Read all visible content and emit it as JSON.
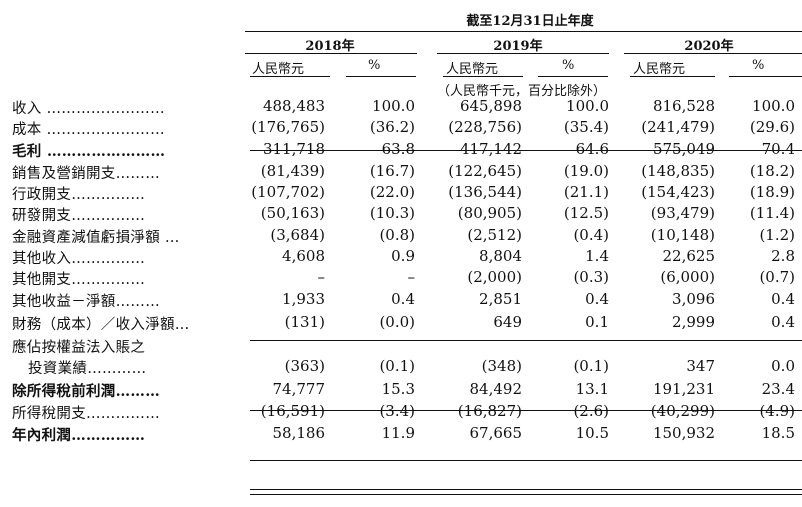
{
  "header": {
    "period_title": "截至12月31日止年度",
    "years": [
      "2018年",
      "2019年",
      "2020年"
    ],
    "col_rmb": "人民幣元",
    "col_pct": "%",
    "unit_note": "（人民幣千元，百分比除外）"
  },
  "rows": [
    {
      "label": "收入 ……………………",
      "values": [
        "488,483",
        "100.0",
        "645,898",
        "100.0",
        "816,528",
        "100.0"
      ]
    },
    {
      "label": "成本 ……………………",
      "values": [
        "(176,765)",
        "(36.2)",
        "(228,756)",
        "(35.4)",
        "(241,479)",
        "(29.6)"
      ]
    },
    {
      "label": "毛利 ……………………",
      "values": [
        "311,718",
        "63.8",
        "417,142",
        "64.6",
        "575,049",
        "70.4"
      ]
    },
    {
      "label": "銷售及營銷開支………",
      "values": [
        "(81,439)",
        "(16.7)",
        "(122,645)",
        "(19.0)",
        "(148,835)",
        "(18.2)"
      ]
    },
    {
      "label": "行政開支……………",
      "values": [
        "(107,702)",
        "(22.0)",
        "(136,544)",
        "(21.1)",
        "(154,423)",
        "(18.9)"
      ]
    },
    {
      "label": "研發開支……………",
      "values": [
        "(50,163)",
        "(10.3)",
        "(80,905)",
        "(12.5)",
        "(93,479)",
        "(11.4)"
      ]
    },
    {
      "label": "金融資產減值虧損淨額 …",
      "values": [
        "(3,684)",
        "(0.8)",
        "(2,512)",
        "(0.4)",
        "(10,148)",
        "(1.2)"
      ]
    },
    {
      "label": "其他收入……………",
      "values": [
        "4,608",
        "0.9",
        "8,804",
        "1.4",
        "22,625",
        "2.8"
      ]
    },
    {
      "label": "其他開支……………",
      "values": [
        "–",
        "–",
        "(2,000)",
        "(0.3)",
        "(6,000)",
        "(0.7)"
      ]
    },
    {
      "label": "其他收益－淨額………",
      "values": [
        "1,933",
        "0.4",
        "2,851",
        "0.4",
        "3,096",
        "0.4"
      ]
    },
    {
      "label": "財務（成本）／收入淨額…",
      "values": [
        "(131)",
        "(0.0)",
        "649",
        "0.1",
        "2,999",
        "0.4"
      ]
    },
    {
      "label": "應佔按權益法入賬之",
      "values": [
        "",
        "",
        "",
        "",
        "",
        ""
      ]
    },
    {
      "label": "投資業績…………",
      "values": [
        "(363)",
        "(0.1)",
        "(348)",
        "(0.1)",
        "347",
        "0.0"
      ]
    },
    {
      "label": "除所得稅前利潤………",
      "values": [
        "74,777",
        "15.3",
        "84,492",
        "13.1",
        "191,231",
        "23.4"
      ]
    },
    {
      "label": "所得稅開支……………",
      "values": [
        "(16,591)",
        "(3.4)",
        "(16,827)",
        "(2.6)",
        "(40,299)",
        "(4.9)"
      ]
    },
    {
      "label": "年內利潤……………",
      "values": [
        "58,186",
        "11.9",
        "67,665",
        "10.5",
        "150,932",
        "18.5"
      ]
    }
  ]
}
